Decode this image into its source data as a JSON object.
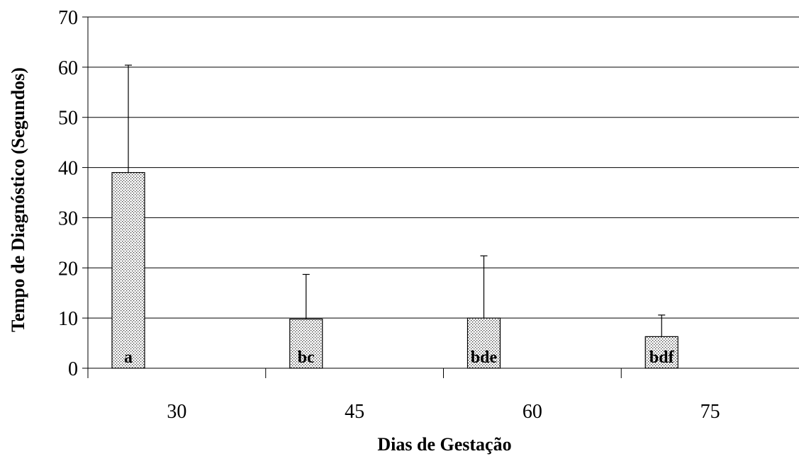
{
  "chart_data": {
    "type": "bar",
    "xlabel": "Dias de Gestação",
    "ylabel": "Tempo de Diagnóstico (Segundos)",
    "ylim": [
      0,
      70
    ],
    "yticks": [
      0,
      10,
      20,
      30,
      40,
      50,
      60,
      70
    ],
    "grid": true,
    "categories": [
      "30",
      "45",
      "60",
      "75"
    ],
    "values": [
      39,
      9.8,
      10,
      6.3
    ],
    "error_upper": [
      60.4,
      18.7,
      22.4,
      10.6
    ],
    "bar_labels": [
      "a",
      "bc",
      "bde",
      "bdf"
    ],
    "bar_pattern": "dotted-stipple"
  }
}
